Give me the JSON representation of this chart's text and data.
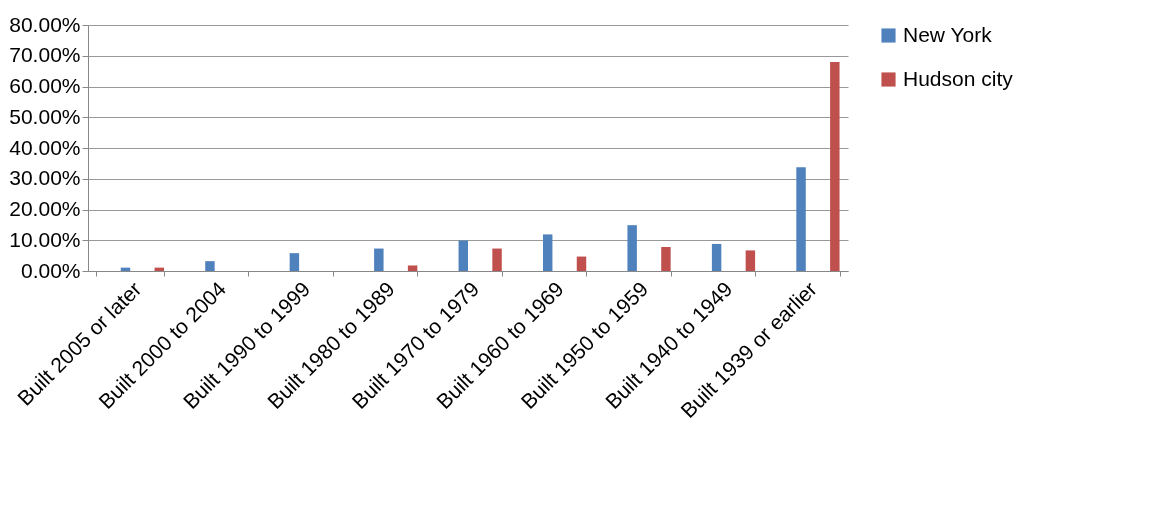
{
  "chart_data": {
    "type": "bar",
    "categories": [
      "Built 2005 or later",
      "Built 2000 to 2004",
      "Built 1990 to 1999",
      "Built 1980 to 1989",
      "Built 1970 to 1979",
      "Built 1960 to 1969",
      "Built 1950 to 1959",
      "Built 1940 to 1949",
      "Built 1939 or earlier"
    ],
    "series": [
      {
        "name": "New York",
        "color": "#4f81bd",
        "values": [
          1.1,
          3.2,
          5.8,
          7.3,
          9.9,
          11.9,
          14.9,
          8.8,
          33.7
        ]
      },
      {
        "name": "Hudson city",
        "color": "#c0504d",
        "values": [
          1.1,
          null,
          null,
          1.8,
          7.3,
          4.7,
          7.8,
          6.7,
          68.0
        ]
      }
    ],
    "ylim": [
      0,
      80
    ],
    "yticks": [
      {
        "value": 0,
        "label": "0.00%"
      },
      {
        "value": 10,
        "label": "10.00%"
      },
      {
        "value": 20,
        "label": "20.00%"
      },
      {
        "value": 30,
        "label": "30.00%"
      },
      {
        "value": 40,
        "label": "40.00%"
      },
      {
        "value": 50,
        "label": "50.00%"
      },
      {
        "value": 60,
        "label": "60.00%"
      },
      {
        "value": 70,
        "label": "70.00%"
      },
      {
        "value": 80,
        "label": "80.00%"
      }
    ],
    "grid": "y",
    "legend": "right"
  }
}
